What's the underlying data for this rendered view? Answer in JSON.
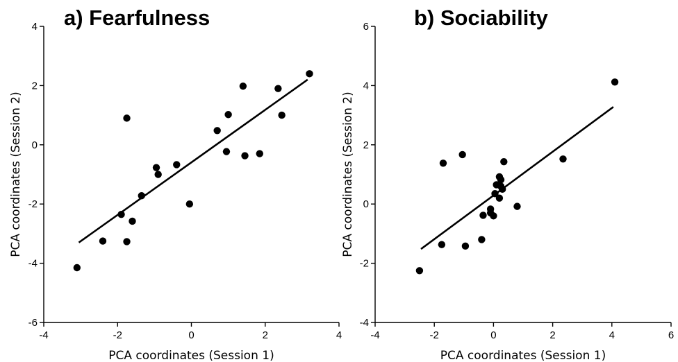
{
  "chart_data": [
    {
      "type": "scatter",
      "title": "a) Fearfulness",
      "xlabel": "PCA coordinates (Session 1)",
      "ylabel": "PCA coordinates (Session 2)",
      "xlim": [
        -4,
        4
      ],
      "ylim": [
        -6,
        4
      ],
      "xticks": [
        -4,
        -2,
        0,
        2,
        4
      ],
      "yticks": [
        -6,
        -4,
        -2,
        0,
        2,
        4
      ],
      "points": [
        {
          "x": -3.1,
          "y": -4.15
        },
        {
          "x": -2.4,
          "y": -3.25
        },
        {
          "x": -1.75,
          "y": -3.27
        },
        {
          "x": -1.9,
          "y": -2.35
        },
        {
          "x": -1.6,
          "y": -2.58
        },
        {
          "x": -1.35,
          "y": -1.72
        },
        {
          "x": -1.75,
          "y": 0.9
        },
        {
          "x": -0.95,
          "y": -0.77
        },
        {
          "x": -0.9,
          "y": -1.0
        },
        {
          "x": -0.4,
          "y": -0.67
        },
        {
          "x": -0.05,
          "y": -2.0
        },
        {
          "x": 0.7,
          "y": 0.48
        },
        {
          "x": 0.95,
          "y": -0.23
        },
        {
          "x": 1.0,
          "y": 1.02
        },
        {
          "x": 1.4,
          "y": 1.98
        },
        {
          "x": 1.45,
          "y": -0.37
        },
        {
          "x": 1.85,
          "y": -0.3
        },
        {
          "x": 2.35,
          "y": 1.9
        },
        {
          "x": 2.45,
          "y": 1.0
        },
        {
          "x": 3.2,
          "y": 2.4
        }
      ],
      "fit_line": {
        "x": [
          -3.05,
          3.15
        ],
        "y": [
          -3.3,
          2.2
        ]
      }
    },
    {
      "type": "scatter",
      "title": "b) Sociability",
      "xlabel": "PCA coordinates (Session 1)",
      "ylabel": "PCA coordinates (Session 2)",
      "xlim": [
        -4,
        6
      ],
      "ylim": [
        -4,
        6
      ],
      "xticks": [
        -4,
        -2,
        0,
        2,
        4,
        6
      ],
      "yticks": [
        -4,
        -2,
        0,
        2,
        4,
        6
      ],
      "points": [
        {
          "x": -2.5,
          "y": -2.25
        },
        {
          "x": -1.75,
          "y": -1.37
        },
        {
          "x": -1.7,
          "y": 1.38
        },
        {
          "x": -1.05,
          "y": 1.67
        },
        {
          "x": -0.95,
          "y": -1.42
        },
        {
          "x": -0.4,
          "y": -1.2
        },
        {
          "x": -0.35,
          "y": -0.38
        },
        {
          "x": -0.1,
          "y": -0.3
        },
        {
          "x": -0.1,
          "y": -0.17
        },
        {
          "x": 0.0,
          "y": -0.4
        },
        {
          "x": 0.05,
          "y": 0.35
        },
        {
          "x": 0.1,
          "y": 0.65
        },
        {
          "x": 0.2,
          "y": 0.2
        },
        {
          "x": 0.2,
          "y": 0.92
        },
        {
          "x": 0.25,
          "y": 0.82
        },
        {
          "x": 0.25,
          "y": 0.6
        },
        {
          "x": 0.3,
          "y": 0.5
        },
        {
          "x": 0.35,
          "y": 1.43
        },
        {
          "x": 0.8,
          "y": -0.08
        },
        {
          "x": 2.35,
          "y": 1.52
        },
        {
          "x": 4.1,
          "y": 4.12
        }
      ],
      "fit_line": {
        "x": [
          -2.45,
          4.05
        ],
        "y": [
          -1.52,
          3.28
        ]
      }
    }
  ]
}
